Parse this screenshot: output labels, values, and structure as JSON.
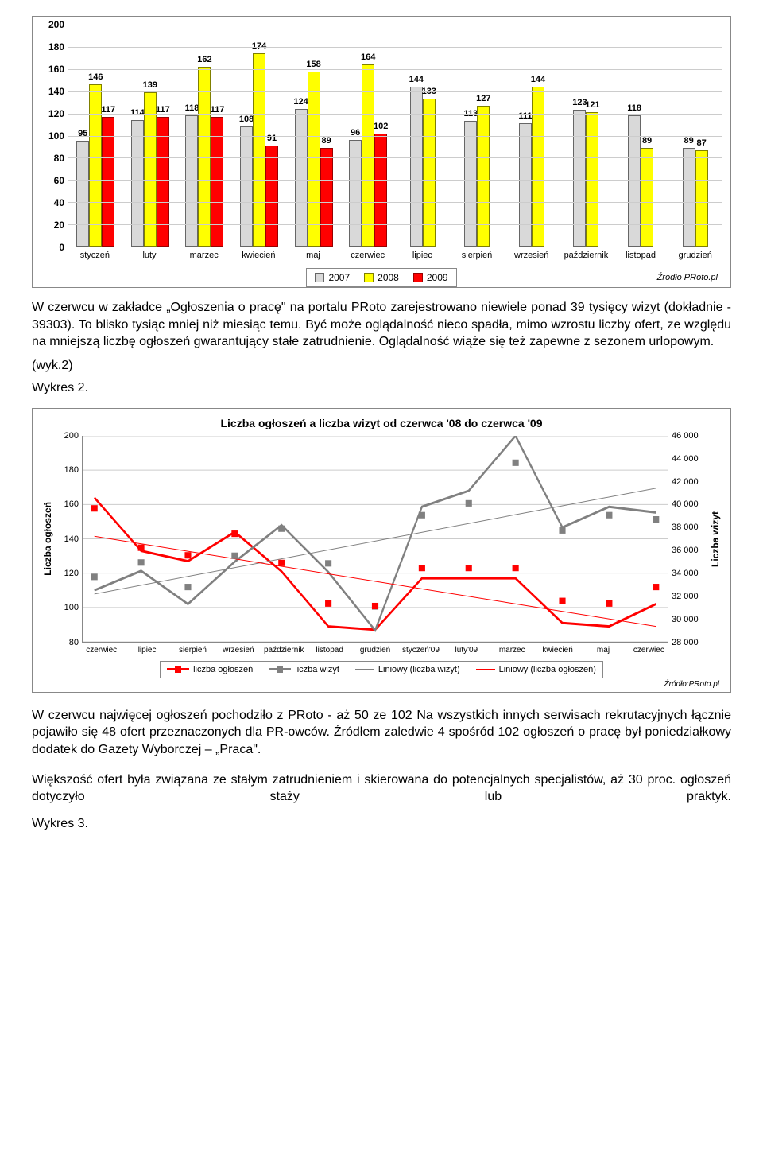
{
  "chart1": {
    "type": "bar",
    "ylim": [
      0,
      200
    ],
    "ytick_step": 20,
    "categories": [
      "styczeń",
      "luty",
      "marzec",
      "kwiecień",
      "maj",
      "czerwiec",
      "lipiec",
      "sierpień",
      "wrzesień",
      "październik",
      "listopad",
      "grudzień"
    ],
    "series": [
      {
        "name": "2007",
        "color": "#d9d9d9",
        "border": "#666666",
        "values": [
          95,
          114,
          118,
          108,
          124,
          96,
          144,
          113,
          111,
          123,
          118,
          89
        ]
      },
      {
        "name": "2008",
        "color": "#ffff00",
        "border": "#7f7f00",
        "values": [
          146,
          139,
          162,
          174,
          158,
          164,
          133,
          127,
          144,
          121,
          89,
          87
        ]
      },
      {
        "name": "2009",
        "color": "#ff0000",
        "border": "#990000",
        "values": [
          117,
          117,
          117,
          91,
          89,
          102,
          null,
          null,
          null,
          null,
          null,
          null
        ]
      }
    ],
    "legend_labels": [
      "2007",
      "2008",
      "2009"
    ],
    "source": "Źródło PRoto.pl",
    "grid_color": "#cccccc",
    "background": "#ffffff",
    "label_fontsize": 11
  },
  "para1": "W czerwcu w zakładce „Ogłoszenia o pracę\" na portalu PRoto zarejestrowano niewiele ponad 39 tysięcy wizyt (dokładnie - 39303). To blisko tysiąc mniej niż miesiąc temu. Być może oglądalność nieco spadła, mimo wzrostu liczby ofert, ze względu na mniejszą liczbę ogłoszeń gwarantujący stałe zatrudnienie. Oglądalność wiąże się też zapewne z sezonem urlopowym.",
  "ref1": "(wyk.2)",
  "ref2": "Wykres 2.",
  "chart2": {
    "type": "line",
    "title": "Liczba ogłoszeń a liczba wizyt od czerwca '08 do czerwca '09",
    "categories": [
      "czerwiec",
      "lipiec",
      "sierpień",
      "wrzesień",
      "październik",
      "listopad",
      "grudzień",
      "styczeń'09",
      "luty'09",
      "marzec",
      "kwiecień",
      "maj",
      "czerwiec"
    ],
    "y_left": {
      "label": "Liczba ogłoszeń",
      "min": 80,
      "max": 200,
      "step": 20
    },
    "y_right": {
      "label": "Liczba wizyt",
      "min": 28000,
      "max": 46000,
      "step": 2000
    },
    "series_ogloszen": {
      "name": "liczba ogłoszeń",
      "color": "#ff0000",
      "marker": "square",
      "values": [
        164,
        133,
        127,
        144,
        121,
        89,
        87,
        117,
        117,
        117,
        91,
        89,
        102
      ]
    },
    "series_wizyt": {
      "name": "liczba wizyt",
      "color": "#808080",
      "marker": "square",
      "values": [
        32500,
        34200,
        31300,
        35000,
        38200,
        34100,
        29000,
        39800,
        41200,
        46000,
        38000,
        39800,
        39300
      ]
    },
    "trend_wizyt": {
      "name": "Liniowy (liczba wizyt)",
      "color": "#808080",
      "style": "thin"
    },
    "trend_ogloszen": {
      "name": "Liniowy (liczba ogłoszeń)",
      "color": "#ff0000",
      "style": "thin"
    },
    "source": "Źródło:PRoto.pl",
    "grid_color": "#cccccc",
    "line_width": 3
  },
  "para2": "W czerwcu najwięcej ogłoszeń pochodziło z PRoto - aż 50 ze 102 Na wszystkich innych serwisach rekrutacyjnych łącznie pojawiło się 48 ofert przeznaczonych dla PR-owców. Źródłem zaledwie 4 spośród 102 ogłoszeń o pracę był poniedziałkowy dodatek do Gazety Wyborczej – „Praca\".",
  "para3": "Większość ofert była związana ze stałym zatrudnieniem i skierowana do potencjalnych specjalistów, aż 30 proc. ogłoszeń dotyczyło staży lub praktyk.",
  "ref3": "Wykres 3."
}
